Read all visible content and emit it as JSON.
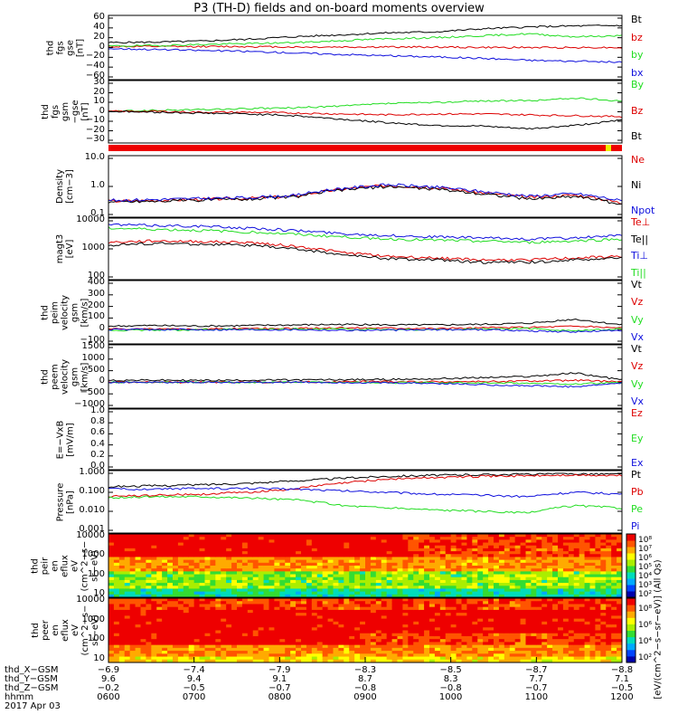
{
  "title": "P3 (TH-D) fields and on-board moments overview",
  "colors": {
    "black": "#000000",
    "red": "#dd0000",
    "green": "#22dd22",
    "blue": "#1010dd"
  },
  "chart_data": [
    {
      "type": "line",
      "panel": "fgs_gse",
      "ylabel": [
        "thd",
        "fgs",
        "gse",
        "[nT]"
      ],
      "ylim": [
        -60,
        60
      ],
      "yticks": [
        "60",
        "40",
        "20",
        "0",
        "−20",
        "−40",
        "−60"
      ],
      "series": [
        {
          "name": "Bt",
          "color": "black",
          "values": [
            10,
            11,
            13,
            17,
            22,
            26,
            30,
            32,
            38,
            42,
            44,
            45
          ]
        },
        {
          "name": "bz",
          "color": "red",
          "values": [
            2,
            2,
            2,
            2,
            1,
            1,
            1,
            1,
            0,
            0,
            0,
            0
          ]
        },
        {
          "name": "by",
          "color": "green",
          "values": [
            3,
            4,
            6,
            8,
            10,
            14,
            18,
            20,
            24,
            28,
            22,
            24
          ]
        },
        {
          "name": "bx",
          "color": "blue",
          "values": [
            -2,
            -4,
            -6,
            -8,
            -11,
            -14,
            -17,
            -19,
            -22,
            -26,
            -28,
            -30
          ]
        }
      ]
    },
    {
      "type": "line",
      "panel": "fgs_gsm",
      "ylabel": [
        "thd",
        "fgs",
        "gsm",
        "−gse",
        "[nT]"
      ],
      "ylim": [
        -35,
        30
      ],
      "yticks": [
        "30",
        "20",
        "10",
        "0",
        "−10",
        "−20",
        "−30"
      ],
      "series": [
        {
          "name": "By",
          "color": "green",
          "values": [
            -2,
            -1,
            0,
            1,
            2,
            4,
            7,
            8,
            10,
            10,
            13,
            10
          ]
        },
        {
          "name": "Bz",
          "color": "red",
          "values": [
            -2,
            -2,
            -3,
            -3,
            -4,
            -5,
            -6,
            -5,
            -5,
            -6,
            -7,
            -8
          ]
        },
        {
          "name": "Bt",
          "color": "black",
          "values": [
            -2,
            -3,
            -4,
            -5,
            -7,
            -11,
            -15,
            -18,
            -19,
            -22,
            -18,
            -12
          ]
        }
      ]
    },
    {
      "type": "line",
      "panel": "density",
      "ylabel": [
        "Density",
        "[cm−3]"
      ],
      "ylim": [
        0.1,
        10
      ],
      "log": true,
      "yticks": [
        "10.0",
        "1.0",
        "0.1"
      ],
      "series": [
        {
          "name": "Ne",
          "color": "red",
          "values": [
            0.3,
            0.32,
            0.35,
            0.38,
            0.45,
            0.8,
            1.1,
            0.9,
            0.6,
            0.4,
            0.5,
            0.25
          ]
        },
        {
          "name": "Ni",
          "color": "black",
          "values": [
            0.28,
            0.3,
            0.33,
            0.36,
            0.43,
            0.75,
            1.0,
            0.8,
            0.55,
            0.35,
            0.45,
            0.22
          ]
        },
        {
          "name": "Npot",
          "color": "blue",
          "values": [
            0.32,
            0.34,
            0.37,
            0.4,
            0.48,
            0.85,
            1.15,
            0.95,
            0.65,
            0.45,
            0.55,
            0.3
          ]
        }
      ]
    },
    {
      "type": "line",
      "panel": "magt3",
      "ylabel": [
        "magt3",
        "[eV]"
      ],
      "ylim": [
        50,
        10000
      ],
      "log": true,
      "yticks": [
        "10000",
        "1000",
        "100"
      ],
      "series": [
        {
          "name": "Te⊥",
          "color": "red",
          "values": [
            1300,
            1500,
            1400,
            1300,
            900,
            500,
            350,
            300,
            250,
            250,
            300,
            350
          ]
        },
        {
          "name": "Te||",
          "color": "black",
          "values": [
            1000,
            1200,
            1100,
            1000,
            700,
            400,
            280,
            250,
            200,
            200,
            250,
            300
          ]
        },
        {
          "name": "Ti⊥",
          "color": "blue",
          "values": [
            7000,
            6500,
            6000,
            5000,
            4000,
            3000,
            2500,
            2200,
            2000,
            1800,
            2000,
            2500
          ]
        },
        {
          "name": "Ti||",
          "color": "green",
          "values": [
            5000,
            4500,
            4000,
            3500,
            2800,
            2200,
            1800,
            1600,
            1500,
            1300,
            1500,
            1800
          ]
        }
      ]
    },
    {
      "type": "line",
      "panel": "peim_velocity",
      "ylabel": [
        "thd",
        "peim",
        "velocity",
        "gsm",
        "[km/s]"
      ],
      "ylim": [
        -100,
        400
      ],
      "yticks": [
        "400",
        "300",
        "200",
        "100",
        "0",
        "−100"
      ],
      "series": [
        {
          "name": "Vt",
          "color": "black",
          "values": [
            30,
            35,
            30,
            35,
            40,
            45,
            40,
            40,
            45,
            55,
            90,
            40
          ]
        },
        {
          "name": "Vz",
          "color": "red",
          "values": [
            5,
            5,
            5,
            10,
            10,
            15,
            15,
            10,
            15,
            20,
            30,
            15
          ]
        },
        {
          "name": "Vy",
          "color": "green",
          "values": [
            -5,
            -5,
            0,
            0,
            5,
            5,
            0,
            0,
            5,
            10,
            -10,
            5
          ]
        },
        {
          "name": "Vx",
          "color": "blue",
          "values": [
            0,
            0,
            0,
            0,
            0,
            -5,
            -5,
            0,
            0,
            -10,
            -20,
            -5
          ]
        }
      ]
    },
    {
      "type": "line",
      "panel": "peem_velocity",
      "ylabel": [
        "thd",
        "peem",
        "velocity",
        "gsm",
        "[km/s]"
      ],
      "ylim": [
        -1000,
        1500
      ],
      "yticks": [
        "1500",
        "1000",
        "500",
        "0",
        "−500",
        "−1000"
      ],
      "series": [
        {
          "name": "Vt",
          "color": "black",
          "values": [
            80,
            90,
            80,
            90,
            100,
            110,
            120,
            150,
            200,
            250,
            400,
            100
          ]
        },
        {
          "name": "Vz",
          "color": "red",
          "values": [
            0,
            0,
            0,
            10,
            0,
            20,
            30,
            20,
            30,
            50,
            80,
            20
          ]
        },
        {
          "name": "Vy",
          "color": "green",
          "values": [
            0,
            0,
            0,
            0,
            0,
            0,
            -20,
            -20,
            -30,
            -50,
            -80,
            -10
          ]
        },
        {
          "name": "Vx",
          "color": "blue",
          "values": [
            0,
            0,
            0,
            0,
            0,
            -10,
            -30,
            -50,
            -100,
            -150,
            -200,
            -30
          ]
        }
      ]
    },
    {
      "type": "line",
      "panel": "e_vxb",
      "ylabel": [
        "E=−VxB",
        "[mV/m]"
      ],
      "ylim": [
        0,
        1
      ],
      "yticks": [
        "1.0",
        "0.8",
        "0.6",
        "0.4",
        "0.2",
        "0.0"
      ],
      "series": [
        {
          "name": "Ez",
          "color": "red",
          "values": []
        },
        {
          "name": "Ey",
          "color": "green",
          "values": []
        },
        {
          "name": "Ex",
          "color": "blue",
          "values": []
        }
      ]
    },
    {
      "type": "line",
      "panel": "pressure",
      "ylabel": [
        "Pressure",
        "[nPa]"
      ],
      "ylim": [
        0.001,
        1
      ],
      "log": true,
      "yticks": [
        "1.000",
        "0.100",
        "0.010",
        "0.001"
      ],
      "series": [
        {
          "name": "Pt",
          "color": "black",
          "values": [
            0.2,
            0.22,
            0.25,
            0.3,
            0.4,
            0.55,
            0.7,
            0.8,
            0.85,
            0.9,
            0.95,
            0.9
          ]
        },
        {
          "name": "Pb",
          "color": "red",
          "values": [
            0.06,
            0.07,
            0.08,
            0.1,
            0.15,
            0.3,
            0.5,
            0.6,
            0.7,
            0.75,
            0.8,
            0.75
          ]
        },
        {
          "name": "Pe",
          "color": "green",
          "values": [
            0.05,
            0.06,
            0.06,
            0.05,
            0.04,
            0.02,
            0.015,
            0.012,
            0.01,
            0.008,
            0.02,
            0.015
          ]
        },
        {
          "name": "Pi",
          "color": "blue",
          "values": [
            0.15,
            0.15,
            0.16,
            0.16,
            0.15,
            0.12,
            0.1,
            0.08,
            0.07,
            0.06,
            0.1,
            0.08
          ]
        }
      ]
    },
    {
      "type": "heatmap",
      "panel": "peir_en_eflux",
      "ylabel": [
        "thd",
        "peir",
        "en",
        "eflux",
        "eV",
        "(cm^2−s−",
        "sr−eV)"
      ],
      "ylim": [
        5,
        30000
      ],
      "log": true,
      "yticks": [
        "10000",
        "1000",
        "100",
        "10"
      ]
    },
    {
      "type": "heatmap",
      "panel": "peer_en_eflux",
      "ylabel": [
        "thd",
        "peer",
        "en",
        "eflux",
        "eV",
        "(cm^2−s−",
        "sr−eV)"
      ],
      "ylim": [
        5,
        30000
      ],
      "log": true,
      "yticks": [
        "10000",
        "1000",
        "100",
        "10"
      ]
    }
  ],
  "colorbar": {
    "label": "[eV/(cm^2−s−sr−eV)] (All Qs)",
    "ticks": [
      "10⁸",
      "10⁷",
      "10⁶",
      "10⁵",
      "10⁴",
      "10³",
      "10²"
    ],
    "ticks2": [
      "10⁸",
      "10⁶",
      "10⁴",
      "10²"
    ]
  },
  "x_axis": {
    "rows": [
      {
        "label": "thd_X−GSM",
        "values": [
          "−6.9",
          "−7.4",
          "−7.9",
          "−8.3",
          "−8.5",
          "−8.7",
          "−8.8"
        ]
      },
      {
        "label": "thd_Y−GSM",
        "values": [
          "9.6",
          "9.4",
          "9.1",
          "8.7",
          "8.3",
          "7.7",
          "7.1"
        ]
      },
      {
        "label": "thd_Z−GSM",
        "values": [
          "−0.2",
          "−0.5",
          "−0.7",
          "−0.8",
          "−0.8",
          "−0.7",
          "−0.5"
        ]
      },
      {
        "label": "hhmm",
        "values": [
          "0600",
          "0700",
          "0800",
          "0900",
          "1000",
          "1100",
          "1200"
        ]
      }
    ],
    "date": "2017 Apr 03"
  }
}
